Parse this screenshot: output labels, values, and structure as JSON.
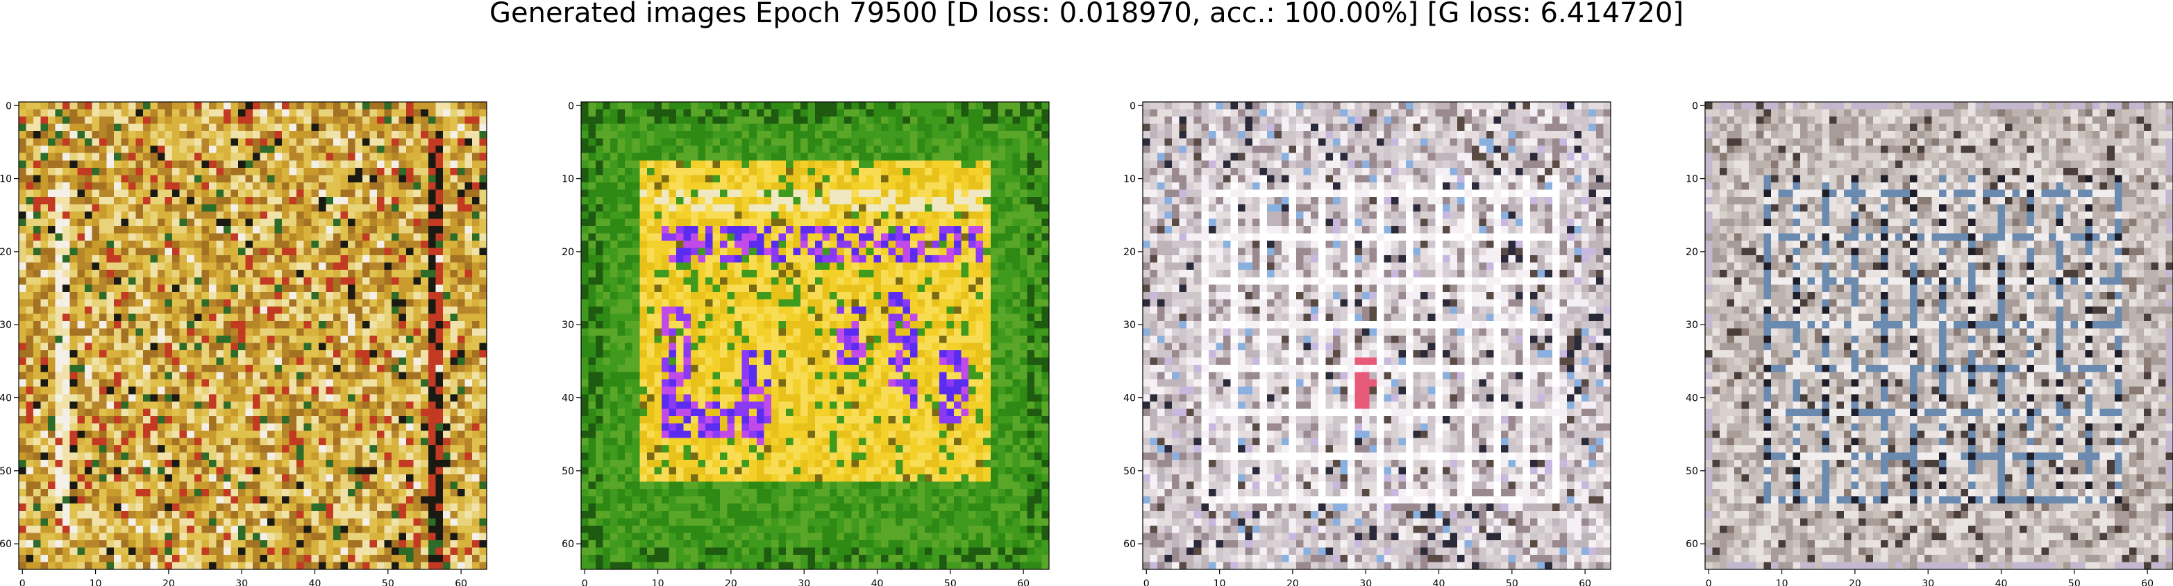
{
  "figure": {
    "title": "Generated images Epoch 79500 [D loss: 0.018970, acc.: 100.00%] [G loss: 6.414720]"
  },
  "panels": [
    {
      "name": "generated-image-1",
      "palette": [
        "#c99a2c",
        "#d8b23c",
        "#e0c14e",
        "#b8862a",
        "#a47222",
        "#e8d27a",
        "#f0e2a8",
        "#c23a22",
        "#2e6b28",
        "#1a1a12",
        "#f4f0e8",
        "#7a5a1e"
      ],
      "style": "golden-noise"
    },
    {
      "name": "generated-image-2",
      "palette": [
        "#2e8a14",
        "#3f9a1e",
        "#5aa628",
        "#e8c21a",
        "#f4d02a",
        "#f8dc54",
        "#5a2cf0",
        "#8a3af4",
        "#c24ae8",
        "#1e5a10",
        "#f0e8c0",
        "#7a6a14"
      ],
      "style": "green-yellow-blue"
    },
    {
      "name": "generated-image-3",
      "palette": [
        "#e6dede",
        "#d8d0d4",
        "#cfc6cc",
        "#bfb4ba",
        "#f4f0f4",
        "#9a8a90",
        "#5a4a44",
        "#2a2a3a",
        "#e85a7a",
        "#8ab0e0",
        "#c8b8e0",
        "#ffffff"
      ],
      "style": "grey-grid-light"
    },
    {
      "name": "generated-image-4",
      "palette": [
        "#d8d0cc",
        "#cac0bc",
        "#bcb2ae",
        "#a89c98",
        "#e8e2e0",
        "#8a7a74",
        "#4a3e3a",
        "#1e1e2a",
        "#6a8ab0",
        "#c4b8d0",
        "#f2eeee",
        "#9aa8c0"
      ],
      "style": "grey-grid-dark"
    }
  ],
  "axes": {
    "x_ticks": [
      "0",
      "10",
      "20",
      "30",
      "40",
      "50",
      "60"
    ],
    "y_ticks": [
      "0",
      "10",
      "20",
      "30",
      "40",
      "50",
      "60"
    ],
    "x_tick_values": [
      0,
      10,
      20,
      30,
      40,
      50,
      60
    ],
    "y_tick_values": [
      0,
      10,
      20,
      30,
      40,
      50,
      60
    ],
    "image_size": 64
  }
}
